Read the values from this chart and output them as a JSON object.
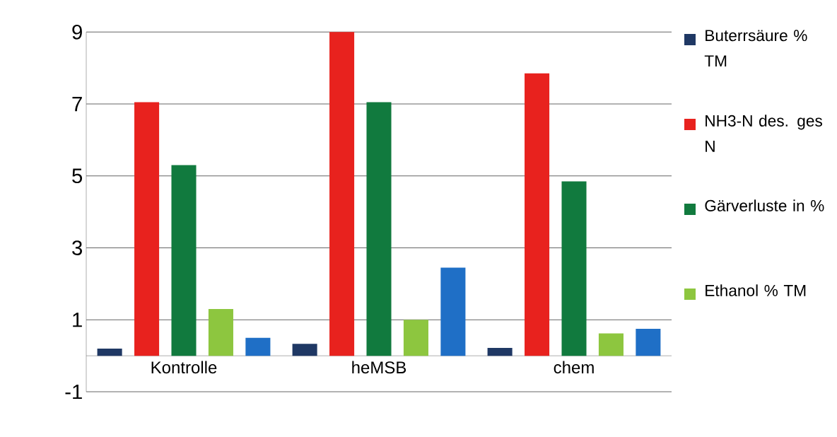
{
  "chart_data": {
    "type": "bar",
    "categories": [
      "Kontrolle",
      "heMSB",
      "chem"
    ],
    "series": [
      {
        "name": "Buterrsäure % TM",
        "color": "#1f3864",
        "values": [
          0.2,
          0.33,
          0.22
        ]
      },
      {
        "name": "NH3-N des. ges N",
        "color": "#e8221e",
        "values": [
          7.05,
          9.0,
          7.85
        ]
      },
      {
        "name": "Gärverluste in %",
        "color": "#117a3e",
        "values": [
          5.3,
          7.05,
          4.85
        ]
      },
      {
        "name": "Ethanol % TM",
        "color": "#8dc63f",
        "values": [
          1.3,
          1.0,
          0.62
        ]
      },
      {
        "color": "#1f6fc6",
        "values": [
          0.5,
          2.45,
          0.75
        ]
      }
    ],
    "ylim": [
      -1,
      9
    ],
    "yticks": [
      -1,
      1,
      3,
      5,
      7,
      9
    ],
    "grid": "y",
    "legend": "right"
  }
}
